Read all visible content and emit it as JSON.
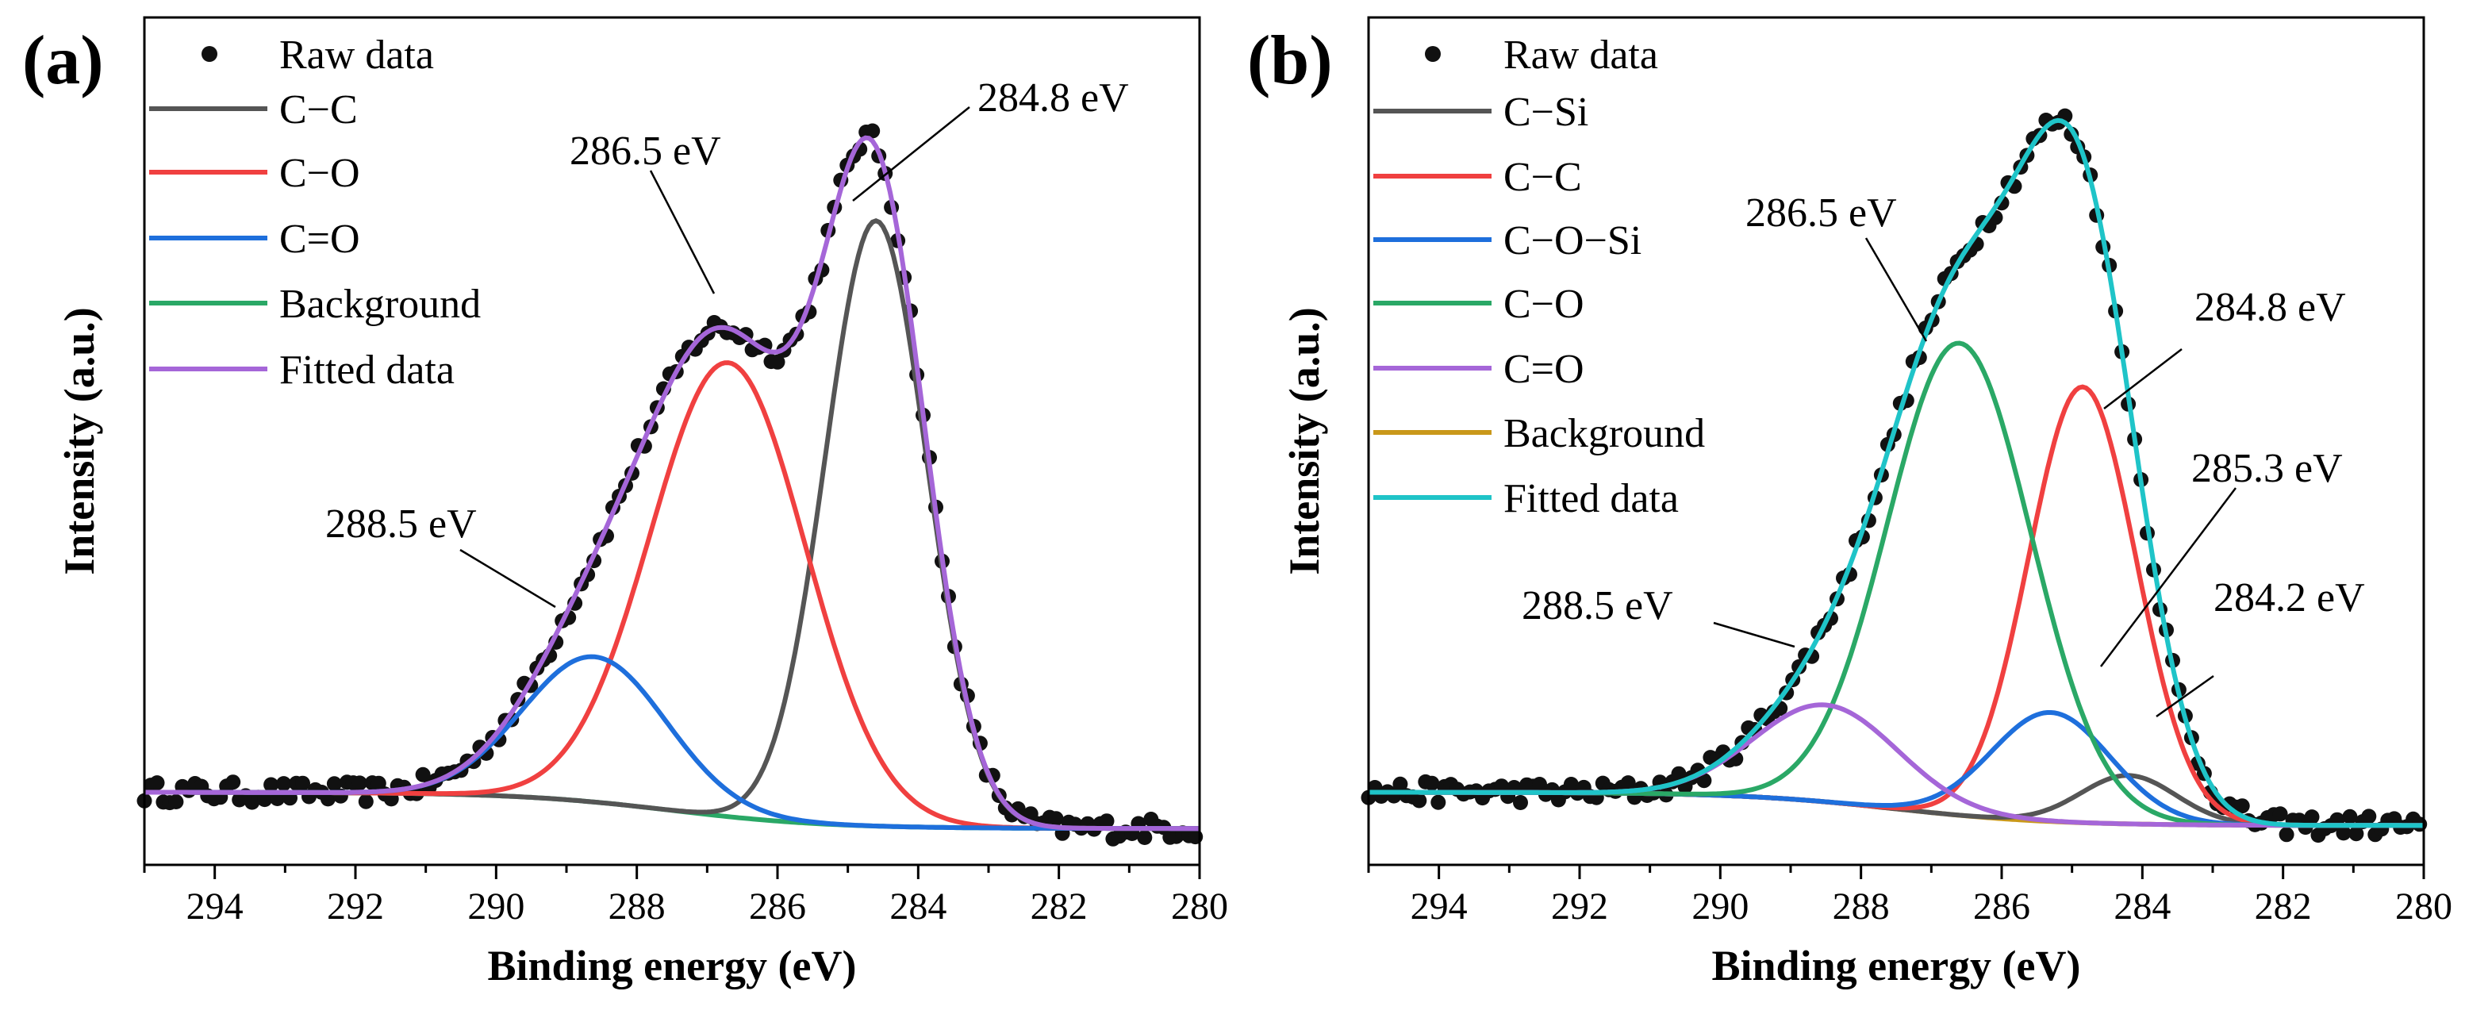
{
  "chart_data": [
    {
      "type": "line",
      "panel_label": "(a)",
      "xlabel": "Binding energy (eV)",
      "ylabel": "Intensity (a.u.)",
      "xlim": [
        295,
        280
      ],
      "x_reversed": true,
      "ylim": [
        -0.12,
        1.28
      ],
      "x_ticks": [
        294,
        292,
        290,
        288,
        286,
        284,
        282,
        280
      ],
      "y_ticks_shown": false,
      "grid": false,
      "legend_position": "top-left",
      "baseline": {
        "start": 0.0,
        "end": -0.06
      },
      "series": [
        {
          "name": "Raw data",
          "type": "scatter",
          "color": "#111111"
        },
        {
          "name": "C−C",
          "color": "#555555",
          "center": 284.6,
          "amplitude": 1.0,
          "fwhm": 1.7
        },
        {
          "name": "C−O",
          "color": "#f04040",
          "center": 286.7,
          "amplitude": 0.75,
          "fwhm": 2.6
        },
        {
          "name": "C=O",
          "color": "#1e6fdc",
          "center": 288.6,
          "amplitude": 0.24,
          "fwhm": 2.4
        },
        {
          "name": "Background",
          "color": "#2aa866",
          "type": "background"
        },
        {
          "name": "Fitted data",
          "color": "#a566d8",
          "type": "sum"
        }
      ],
      "annotations": [
        {
          "text": "284.8 eV",
          "target": [
            284.6,
            0.96
          ]
        },
        {
          "text": "286.5 eV",
          "target": [
            286.6,
            0.87
          ]
        },
        {
          "text": "288.5 eV",
          "target": [
            288.9,
            0.25
          ]
        }
      ]
    },
    {
      "type": "line",
      "panel_label": "(b)",
      "xlabel": "Binding energy (eV)",
      "ylabel": "Intensity (a.u.)",
      "xlim": [
        295,
        280
      ],
      "x_reversed": true,
      "ylim": [
        -0.12,
        1.28
      ],
      "x_ticks": [
        294,
        292,
        290,
        288,
        286,
        284,
        282,
        280
      ],
      "y_ticks_shown": false,
      "grid": false,
      "legend_position": "top-left",
      "baseline": {
        "start": 0.0,
        "end": -0.055
      },
      "series": [
        {
          "name": "Raw data",
          "type": "scatter",
          "color": "#111111"
        },
        {
          "name": "C−Si",
          "color": "#555555",
          "center": 284.2,
          "amplitude": 0.08,
          "fwhm": 1.6
        },
        {
          "name": "C−C",
          "color": "#f04040",
          "center": 284.85,
          "amplitude": 0.72,
          "fwhm": 1.8
        },
        {
          "name": "C−O−Si",
          "color": "#1e6fdc",
          "center": 285.3,
          "amplitude": 0.18,
          "fwhm": 2.0
        },
        {
          "name": "C−O",
          "color": "#2aa866",
          "center": 286.6,
          "amplitude": 0.78,
          "fwhm": 2.4
        },
        {
          "name": "C=O",
          "color": "#a566d8",
          "center": 288.5,
          "amplitude": 0.16,
          "fwhm": 2.4
        },
        {
          "name": "Background",
          "color": "#c9981a",
          "type": "background"
        },
        {
          "name": "Fitted data",
          "color": "#1fc4c8",
          "type": "sum"
        }
      ],
      "annotations": [
        {
          "text": "286.5 eV",
          "target": [
            286.75,
            0.76
          ]
        },
        {
          "text": "284.8 eV",
          "target": [
            284.8,
            0.66
          ]
        },
        {
          "text": "285.3 eV",
          "target": [
            284.9,
            0.13
          ]
        },
        {
          "text": "284.2 eV",
          "target": [
            283.9,
            0.03
          ]
        },
        {
          "text": "288.5 eV",
          "target": [
            288.3,
            0.16
          ]
        }
      ]
    }
  ]
}
